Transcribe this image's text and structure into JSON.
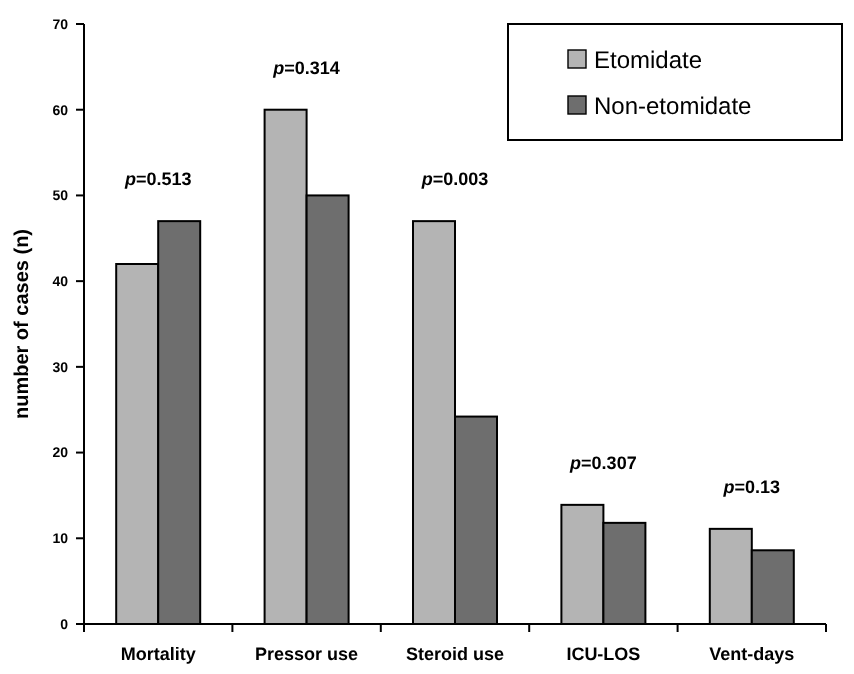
{
  "chart_data": {
    "type": "bar",
    "ylabel": "number of cases (n)",
    "categories": [
      "Mortality",
      "Pressor use",
      "Steroid use",
      "ICU-LOS",
      "Vent-days"
    ],
    "series": [
      {
        "name": "Etomidate",
        "color": "#b4b4b4",
        "values": [
          42,
          60,
          47,
          13.9,
          11.1
        ]
      },
      {
        "name": "Non-etomidate",
        "color": "#6e6e6e",
        "values": [
          47,
          50,
          24.2,
          11.8,
          8.6
        ]
      }
    ],
    "ylim": [
      0,
      70
    ],
    "yticks": [
      0,
      10,
      20,
      30,
      40,
      50,
      60,
      70
    ],
    "grid": false,
    "legend": "top right",
    "annotations": [
      "p=0.513",
      "p=0.314",
      "p=0.003",
      "p=0.307",
      "p=0.13"
    ]
  }
}
